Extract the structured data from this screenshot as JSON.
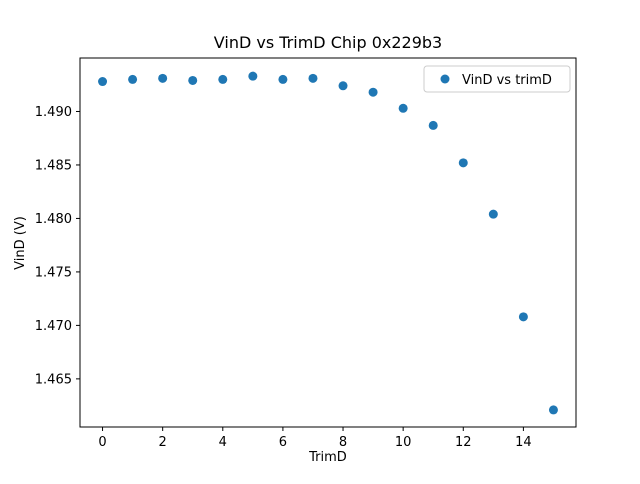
{
  "chart_data": {
    "type": "scatter",
    "title": "VinD vs TrimD Chip 0x229b3",
    "xlabel": "TrimD",
    "ylabel": "VinD (V)",
    "legend": [
      "VinD vs trimD"
    ],
    "legend_position": "upper right",
    "marker_color": "#1f77b4",
    "grid": false,
    "x": [
      0,
      1,
      2,
      3,
      4,
      5,
      6,
      7,
      8,
      9,
      10,
      11,
      12,
      13,
      14,
      15
    ],
    "y": [
      1.4928,
      1.493,
      1.4931,
      1.4929,
      1.493,
      1.4933,
      1.493,
      1.4931,
      1.4924,
      1.4918,
      1.4903,
      1.4887,
      1.4852,
      1.4804,
      1.4708,
      1.4621
    ],
    "xlim": [
      -0.75,
      15.75
    ],
    "ylim": [
      1.4605,
      1.495
    ],
    "xticks": [
      0,
      2,
      4,
      6,
      8,
      10,
      12,
      14
    ],
    "yticks": [
      1.465,
      1.47,
      1.475,
      1.48,
      1.485,
      1.49
    ]
  }
}
